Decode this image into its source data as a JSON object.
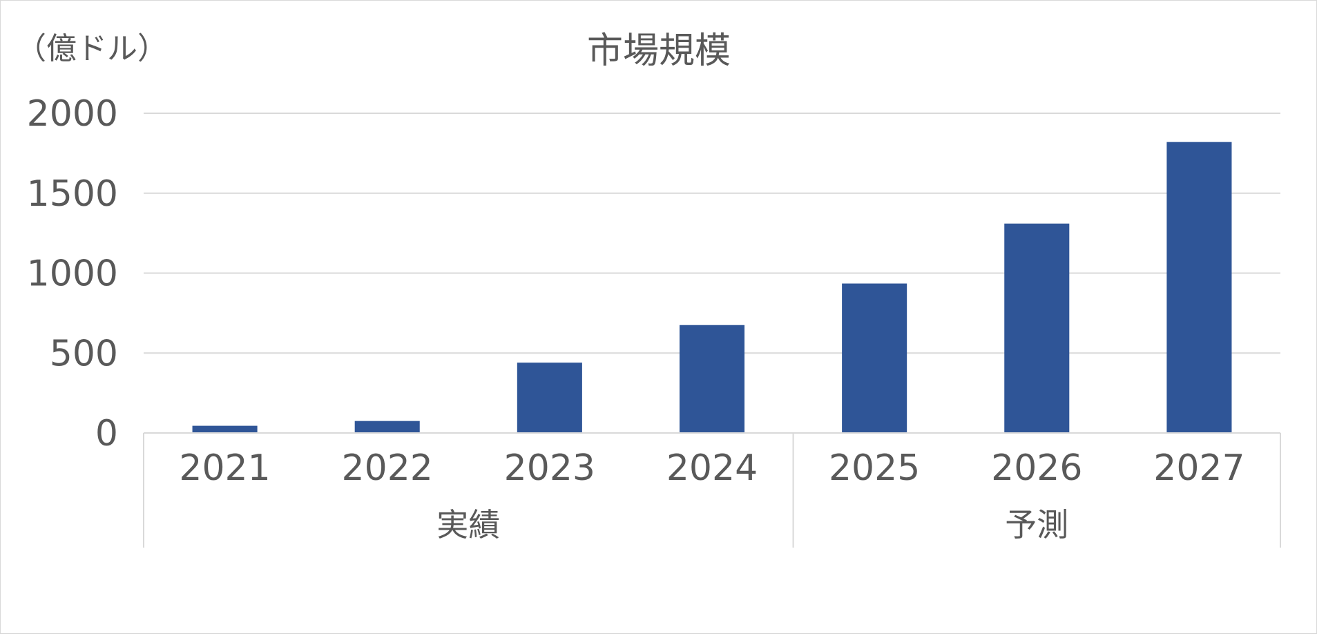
{
  "chart_data": {
    "type": "bar",
    "title": "市場規模",
    "unit_label": "（億ドル）",
    "categories": [
      "2021",
      "2022",
      "2023",
      "2024",
      "2025",
      "2026",
      "2027"
    ],
    "values": [
      45,
      75,
      440,
      675,
      935,
      1310,
      1820
    ],
    "category_groups": [
      {
        "label": "実績",
        "categories": [
          "2021",
          "2022",
          "2023",
          "2024"
        ]
      },
      {
        "label": "予測",
        "categories": [
          "2025",
          "2026",
          "2027"
        ]
      }
    ],
    "yticks": [
      "0",
      "500",
      "1000",
      "1500",
      "2000"
    ],
    "ylim": [
      0,
      2000
    ],
    "grid": true,
    "legend": "none",
    "bar_color": "#2f5597",
    "grid_color": "#d9d9d9",
    "text_color": "#595959"
  }
}
